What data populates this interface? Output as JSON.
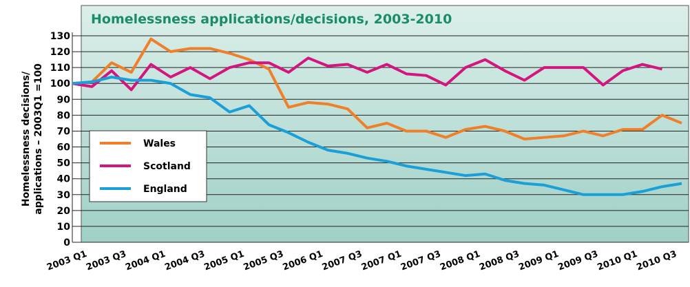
{
  "chart_data": {
    "type": "line",
    "title": "Homelessness applications/decisions, 2003-2010",
    "y_label_lines": [
      "Homelessness decisions/",
      "applications – 2003Q1 =100"
    ],
    "categories": [
      "2003 Q1",
      null,
      "2003 Q3",
      null,
      "2004 Q1",
      null,
      "2004 Q3",
      null,
      "2005 Q1",
      null,
      "2005 Q3",
      null,
      "2006 Q1",
      null,
      "2007 Q3",
      null,
      "2007 Q1",
      null,
      "2007 Q3",
      null,
      "2008 Q1",
      null,
      "2008 Q3",
      null,
      "2009 Q1",
      null,
      "2009 Q3",
      null,
      "2010 Q1",
      null,
      "2010 Q3",
      null
    ],
    "series": [
      {
        "name": "Wales",
        "color": "#f07f2a",
        "values": [
          100,
          101,
          113,
          107,
          128,
          120,
          122,
          122,
          119,
          115,
          109,
          85,
          88,
          87,
          84,
          72,
          75,
          70,
          70,
          66,
          71,
          73,
          70,
          65,
          66,
          67,
          70,
          67,
          71,
          71,
          80,
          75
        ]
      },
      {
        "name": "Scotland",
        "color": "#d4147f",
        "values": [
          100,
          98,
          108,
          96,
          112,
          104,
          110,
          103,
          110,
          113,
          113,
          107,
          116,
          111,
          112,
          107,
          112,
          106,
          105,
          99,
          110,
          115,
          108,
          102,
          110,
          110,
          110,
          99,
          108,
          112,
          109,
          null
        ]
      },
      {
        "name": "England",
        "color": "#1a9fd8",
        "values": [
          100,
          101,
          104,
          102,
          102,
          100,
          93,
          91,
          82,
          86,
          74,
          69,
          63,
          58,
          56,
          53,
          51,
          48,
          46,
          44,
          42,
          43,
          39,
          37,
          36,
          33,
          30,
          30,
          30,
          32,
          35,
          37
        ]
      }
    ],
    "ylim": [
      0,
      130
    ],
    "yticks": [
      0,
      10,
      20,
      30,
      40,
      50,
      60,
      70,
      80,
      90,
      100,
      110,
      120,
      130
    ],
    "grid": true
  }
}
